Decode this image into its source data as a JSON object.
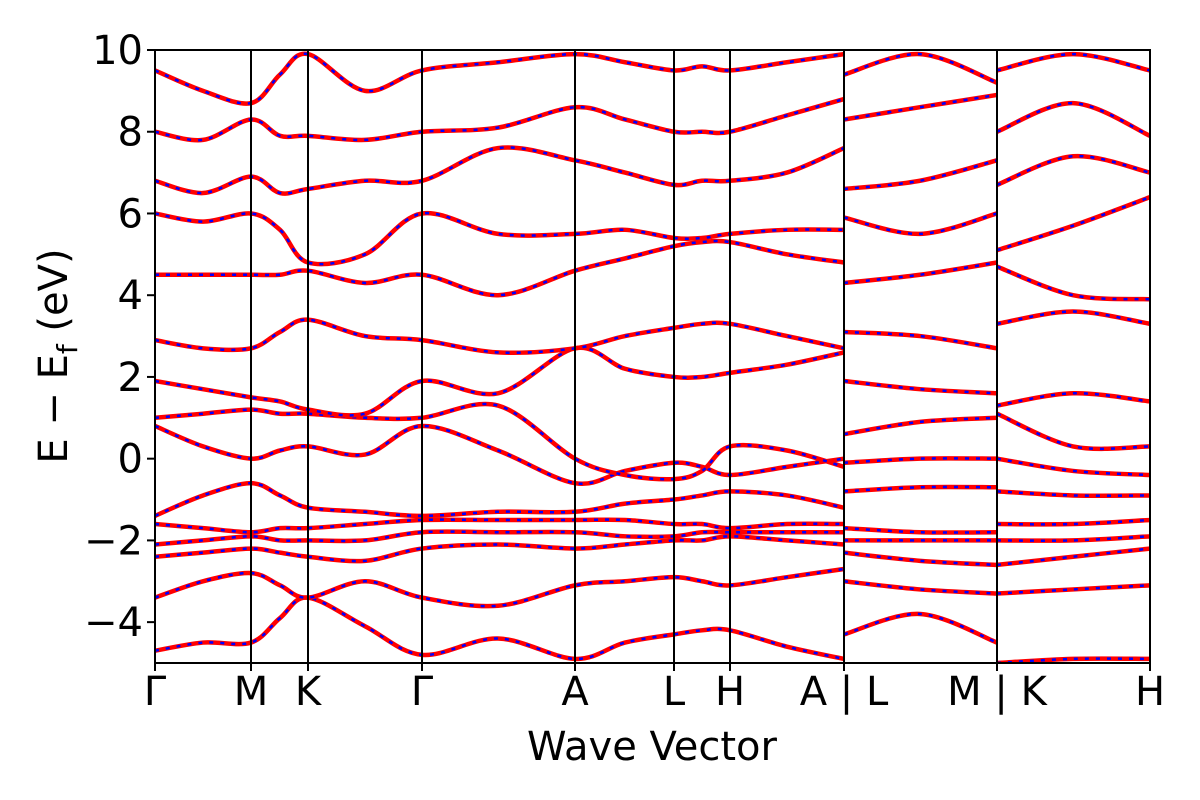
{
  "chart_data": {
    "type": "band-structure",
    "xlabel": "Wave Vector",
    "ylabel": [
      "E − E",
      "f",
      " (eV)"
    ],
    "xlim": [
      0,
      9.95
    ],
    "ylim": [
      -5,
      10
    ],
    "xticks": [
      {
        "value": 0,
        "label": "Γ"
      },
      {
        "value": 0.96,
        "label": "M"
      },
      {
        "value": 1.53,
        "label": "K"
      },
      {
        "value": 2.67,
        "label": "Γ"
      },
      {
        "value": 4.2,
        "label": "A"
      },
      {
        "value": 5.19,
        "label": "L"
      },
      {
        "value": 5.75,
        "label": "H"
      },
      {
        "value": 6.89,
        "label": "A | L"
      },
      {
        "value": 8.42,
        "label": "M | K"
      },
      {
        "value": 9.95,
        "label": "H"
      }
    ],
    "yticks": [
      {
        "value": -4,
        "label": "−4"
      },
      {
        "value": -2,
        "label": "−2"
      },
      0,
      2,
      4,
      6,
      8,
      10
    ],
    "up_color": "#ff0000",
    "down_color": "#0000ff",
    "x": [
      0,
      0.48,
      0.96,
      1.25,
      1.53,
      2.1,
      2.67,
      3.43,
      4.2,
      4.7,
      5.19,
      5.47,
      5.75,
      6.32,
      6.89,
      6.89,
      6.89,
      7.65,
      8.42,
      8.42,
      8.42,
      9.18,
      9.95
    ],
    "bands": [
      [
        -4.7,
        -4.5,
        -4.5,
        -3.9,
        -3.4,
        -4.1,
        -4.8,
        -4.4,
        -4.9,
        -4.5,
        -4.3,
        -4.2,
        -4.2,
        -4.6,
        -4.9,
        null,
        -4.3,
        -3.8,
        -4.5,
        null,
        -5.0,
        -4.9,
        -4.9
      ],
      [
        -3.4,
        -3.0,
        -2.8,
        -3.1,
        -3.4,
        -3.0,
        -3.4,
        -3.6,
        -3.1,
        -3.0,
        -2.9,
        -3.0,
        -3.1,
        -2.9,
        -2.7,
        null,
        -3.0,
        -3.2,
        -3.3,
        null,
        -3.3,
        -3.2,
        -3.1
      ],
      [
        -2.4,
        -2.3,
        -2.2,
        -2.3,
        -2.4,
        -2.5,
        -2.2,
        -2.1,
        -2.2,
        -2.1,
        -2.0,
        -2.0,
        -1.9,
        -2.0,
        -2.1,
        null,
        -2.3,
        -2.5,
        -2.6,
        null,
        -2.6,
        -2.4,
        -2.2
      ],
      [
        -2.1,
        -2.0,
        -1.9,
        -2.0,
        -2.0,
        -2.0,
        -1.8,
        -1.8,
        -1.8,
        -1.9,
        -1.9,
        -1.8,
        -1.8,
        -1.8,
        -1.8,
        null,
        -2.0,
        -2.0,
        -2.0,
        null,
        -2.0,
        -2.0,
        -1.9
      ],
      [
        -1.6,
        -1.7,
        -1.8,
        -1.7,
        -1.7,
        -1.6,
        -1.5,
        -1.5,
        -1.5,
        -1.5,
        -1.6,
        -1.6,
        -1.7,
        -1.6,
        -1.6,
        null,
        -1.7,
        -1.8,
        -1.8,
        null,
        -1.6,
        -1.6,
        -1.5
      ],
      [
        -1.4,
        -0.9,
        -0.6,
        -0.9,
        -1.2,
        -1.3,
        -1.4,
        -1.3,
        -1.3,
        -1.1,
        -1.0,
        -0.9,
        -0.8,
        -0.9,
        -1.2,
        null,
        -0.8,
        -0.7,
        -0.7,
        null,
        -0.8,
        -0.9,
        -0.9
      ],
      [
        0.8,
        0.3,
        0.0,
        0.2,
        0.3,
        0.1,
        0.8,
        0.2,
        -0.6,
        -0.3,
        -0.1,
        -0.2,
        -0.4,
        -0.2,
        0.0,
        null,
        -0.1,
        0.0,
        0.0,
        null,
        0.0,
        -0.3,
        -0.4
      ],
      [
        1.0,
        1.1,
        1.2,
        1.1,
        1.1,
        1.0,
        1.0,
        1.3,
        0.0,
        -0.4,
        -0.5,
        -0.3,
        0.3,
        0.2,
        -0.2,
        null,
        0.6,
        0.9,
        1.0,
        null,
        1.1,
        0.3,
        0.3
      ],
      [
        1.9,
        1.7,
        1.5,
        1.4,
        1.2,
        1.1,
        1.9,
        1.6,
        2.7,
        2.2,
        2.0,
        2.0,
        2.1,
        2.3,
        2.6,
        null,
        1.9,
        1.7,
        1.6,
        null,
        1.3,
        1.6,
        1.4
      ],
      [
        2.9,
        2.7,
        2.7,
        3.1,
        3.4,
        3.0,
        2.9,
        2.6,
        2.7,
        3.0,
        3.2,
        3.3,
        3.3,
        3.0,
        2.7,
        null,
        3.1,
        3.0,
        2.7,
        null,
        3.3,
        3.6,
        3.3
      ],
      [
        4.5,
        4.5,
        4.5,
        4.5,
        4.6,
        4.3,
        4.5,
        4.0,
        4.6,
        4.9,
        5.2,
        5.3,
        5.3,
        5.0,
        4.8,
        null,
        4.3,
        4.5,
        4.8,
        null,
        4.7,
        4.0,
        3.9
      ],
      [
        6.0,
        5.8,
        6.0,
        5.6,
        4.8,
        5.0,
        6.0,
        5.5,
        5.5,
        5.6,
        5.4,
        5.4,
        5.5,
        5.6,
        5.6,
        null,
        5.9,
        5.5,
        6.0,
        null,
        5.1,
        5.7,
        6.4
      ],
      [
        6.8,
        6.5,
        6.9,
        6.5,
        6.6,
        6.8,
        6.8,
        7.6,
        7.3,
        7.0,
        6.7,
        6.8,
        6.8,
        7.0,
        7.6,
        null,
        6.6,
        6.8,
        7.3,
        null,
        6.7,
        7.4,
        7.0
      ],
      [
        8.0,
        7.8,
        8.3,
        7.9,
        7.9,
        7.8,
        8.0,
        8.1,
        8.6,
        8.3,
        8.0,
        8.0,
        8.0,
        8.4,
        8.8,
        null,
        8.3,
        8.6,
        8.9,
        null,
        8.0,
        8.7,
        7.9
      ],
      [
        9.5,
        9.0,
        8.7,
        9.4,
        9.9,
        9.0,
        9.5,
        9.7,
        9.9,
        9.7,
        9.5,
        9.6,
        9.5,
        9.7,
        9.9,
        null,
        9.4,
        9.9,
        9.2,
        null,
        9.5,
        9.9,
        9.5
      ]
    ]
  }
}
